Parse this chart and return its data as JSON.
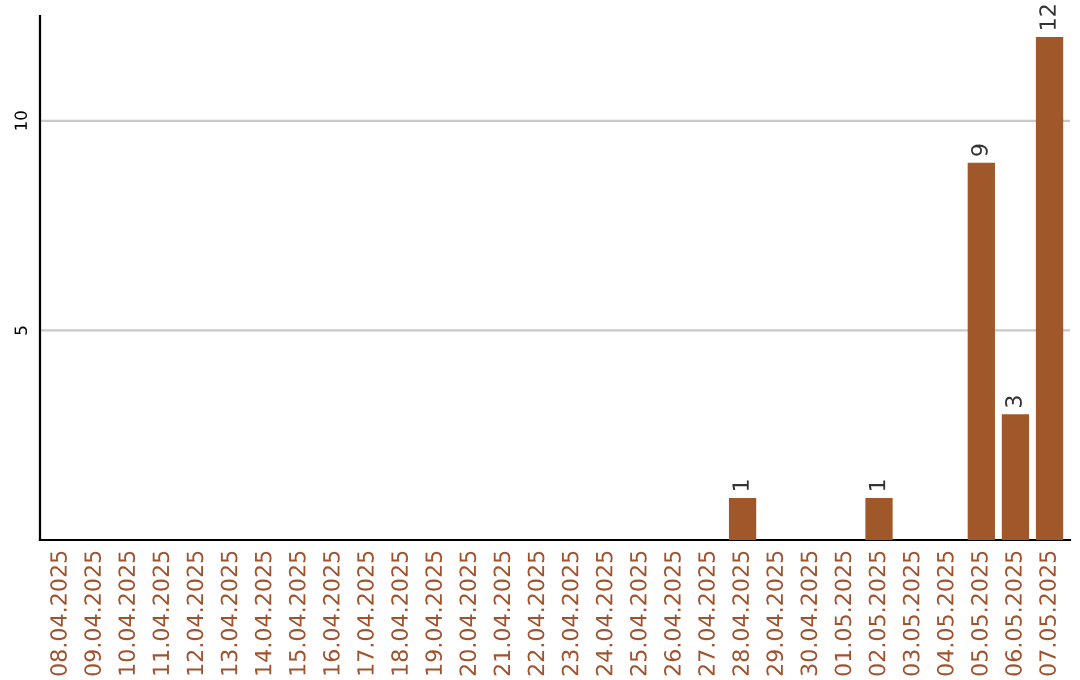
{
  "chart_data": {
    "type": "bar",
    "categories": [
      "08.04.2025",
      "09.04.2025",
      "10.04.2025",
      "11.04.2025",
      "12.04.2025",
      "13.04.2025",
      "14.04.2025",
      "15.04.2025",
      "16.04.2025",
      "17.04.2025",
      "18.04.2025",
      "19.04.2025",
      "20.04.2025",
      "21.04.2025",
      "22.04.2025",
      "23.04.2025",
      "24.04.2025",
      "25.04.2025",
      "26.04.2025",
      "27.04.2025",
      "28.04.2025",
      "29.04.2025",
      "30.04.2025",
      "01.05.2025",
      "02.05.2025",
      "03.05.2025",
      "04.05.2025",
      "05.05.2025",
      "06.05.2025",
      "07.05.2025"
    ],
    "values": [
      0,
      0,
      0,
      0,
      0,
      0,
      0,
      0,
      0,
      0,
      0,
      0,
      0,
      0,
      0,
      0,
      0,
      0,
      0,
      0,
      1,
      0,
      0,
      0,
      1,
      0,
      0,
      9,
      3,
      12
    ],
    "value_labels": [
      null,
      null,
      null,
      null,
      null,
      null,
      null,
      null,
      null,
      null,
      null,
      null,
      null,
      null,
      null,
      null,
      null,
      null,
      null,
      null,
      "1",
      null,
      null,
      null,
      "1",
      null,
      null,
      "9",
      "3",
      "12"
    ],
    "color": "#a0582a",
    "ylim": [
      0,
      12.5
    ],
    "yticks": [
      5,
      10
    ],
    "grid": "y"
  }
}
